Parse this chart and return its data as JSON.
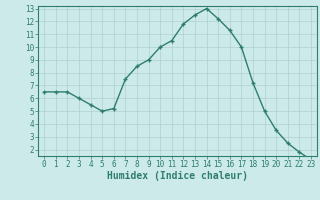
{
  "x": [
    0,
    1,
    2,
    3,
    4,
    5,
    6,
    7,
    8,
    9,
    10,
    11,
    12,
    13,
    14,
    15,
    16,
    17,
    18,
    19,
    20,
    21,
    22,
    23
  ],
  "y": [
    6.5,
    6.5,
    6.5,
    6.0,
    5.5,
    5.0,
    5.2,
    7.5,
    8.5,
    9.0,
    10.0,
    10.5,
    11.8,
    12.5,
    13.0,
    12.2,
    11.3,
    10.0,
    7.2,
    5.0,
    3.5,
    2.5,
    1.8,
    1.2
  ],
  "line_color": "#2e7d6e",
  "marker": "+",
  "marker_size": 3,
  "marker_lw": 1.0,
  "line_width": 1.0,
  "bg_color": "#cdeaea",
  "grid_color": "#b0d0d0",
  "xlabel": "Humidex (Indice chaleur)",
  "xlim_min": -0.5,
  "xlim_max": 23.5,
  "ylim_min": 1.5,
  "ylim_max": 13.2,
  "xtick_vals": [
    0,
    1,
    2,
    3,
    4,
    5,
    6,
    7,
    8,
    9,
    10,
    11,
    12,
    13,
    14,
    15,
    16,
    17,
    18,
    19,
    20,
    21,
    22,
    23
  ],
  "xtick_labels": [
    "0",
    "1",
    "2",
    "3",
    "4",
    "5",
    "6",
    "7",
    "8",
    "9",
    "10",
    "11",
    "12",
    "13",
    "14",
    "15",
    "16",
    "17",
    "18",
    "19",
    "20",
    "21",
    "22",
    "23"
  ],
  "ytick_vals": [
    2,
    3,
    4,
    5,
    6,
    7,
    8,
    9,
    10,
    11,
    12,
    13
  ],
  "ytick_labels": [
    "2",
    "3",
    "4",
    "5",
    "6",
    "7",
    "8",
    "9",
    "10",
    "11",
    "12",
    "13"
  ],
  "tick_fontsize": 5.5,
  "xlabel_fontsize": 7,
  "xlabel_fontweight": "bold"
}
